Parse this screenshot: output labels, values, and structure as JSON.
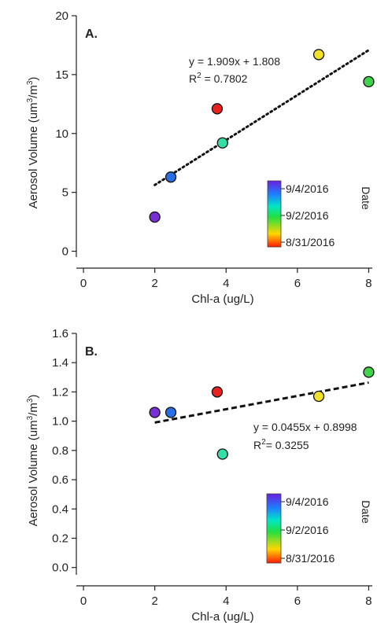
{
  "chart_data": [
    {
      "type": "scatter",
      "panel_label": "A.",
      "xlabel": "Chl-a (ug/L)",
      "ylabel": {
        "prefix": "Aerosol Volume (um",
        "mid": "/m",
        "sup": "3",
        "suffix": ")"
      },
      "xlim": [
        -0.2,
        8.1
      ],
      "ylim": [
        -0.5,
        20
      ],
      "xticks": [
        0,
        2,
        4,
        6,
        8
      ],
      "xtick_labels": [
        "0",
        "2",
        "4",
        "6",
        "8"
      ],
      "yticks": [
        0,
        5,
        10,
        15,
        20
      ],
      "ytick_labels": [
        "0",
        "5",
        "10",
        "15",
        "20"
      ],
      "points": [
        {
          "x": 2.0,
          "y": 2.9,
          "color": "#7b2fd6"
        },
        {
          "x": 2.45,
          "y": 6.3,
          "color": "#2a6ee6"
        },
        {
          "x": 3.75,
          "y": 12.1,
          "color": "#e8231f"
        },
        {
          "x": 3.9,
          "y": 9.2,
          "color": "#33dfa6"
        },
        {
          "x": 6.6,
          "y": 16.7,
          "color": "#f2e12a"
        },
        {
          "x": 8.0,
          "y": 14.4,
          "color": "#3fd34a"
        }
      ],
      "fit": {
        "slope": 1.909,
        "intercept": 1.808,
        "x_range": [
          2.0,
          8.0
        ],
        "style": "dotted"
      },
      "equation": "y = 1.909x + 1.808",
      "r2_label": "R",
      "r2_sup": "2",
      "r2_value": " = 0.7802",
      "colorbar": {
        "title": "Date",
        "labels": [
          "9/4/2016",
          "9/2/2016",
          "8/31/2016"
        ]
      }
    },
    {
      "type": "scatter",
      "panel_label": "B.",
      "xlabel": "Chl-a (ug/L)",
      "ylabel": {
        "prefix": "Aerosol Volume (um",
        "mid": "/m",
        "sup": "3",
        "suffix": ")"
      },
      "xlim": [
        -0.2,
        8.1
      ],
      "ylim": [
        -0.05,
        1.6
      ],
      "xticks": [
        0,
        2,
        4,
        6,
        8
      ],
      "xtick_labels": [
        "0",
        "2",
        "4",
        "6",
        "8"
      ],
      "yticks": [
        0.0,
        0.2,
        0.4,
        0.6,
        0.8,
        1.0,
        1.2,
        1.4,
        1.6
      ],
      "ytick_labels": [
        "0.0",
        "0.2",
        "0.4",
        "0.6",
        "0.8",
        "1.0",
        "1.2",
        "1.4",
        "1.6"
      ],
      "points": [
        {
          "x": 2.0,
          "y": 1.06,
          "color": "#7b2fd6"
        },
        {
          "x": 2.45,
          "y": 1.06,
          "color": "#2a6ee6"
        },
        {
          "x": 3.75,
          "y": 1.2,
          "color": "#e8231f"
        },
        {
          "x": 3.9,
          "y": 0.775,
          "color": "#33dfa6"
        },
        {
          "x": 6.6,
          "y": 1.17,
          "color": "#f2e12a"
        },
        {
          "x": 8.0,
          "y": 1.335,
          "color": "#3fd34a"
        }
      ],
      "fit": {
        "slope": 0.0455,
        "intercept": 0.8998,
        "x_range": [
          2.0,
          8.0
        ],
        "style": "dashed"
      },
      "equation": "y = 0.0455x + 0.8998",
      "r2_label": "R",
      "r2_sup": "2",
      "r2_value": "= 0.3255",
      "colorbar": {
        "title": "Date",
        "labels": [
          "9/4/2016",
          "9/2/2016",
          "8/31/2016"
        ]
      }
    }
  ]
}
